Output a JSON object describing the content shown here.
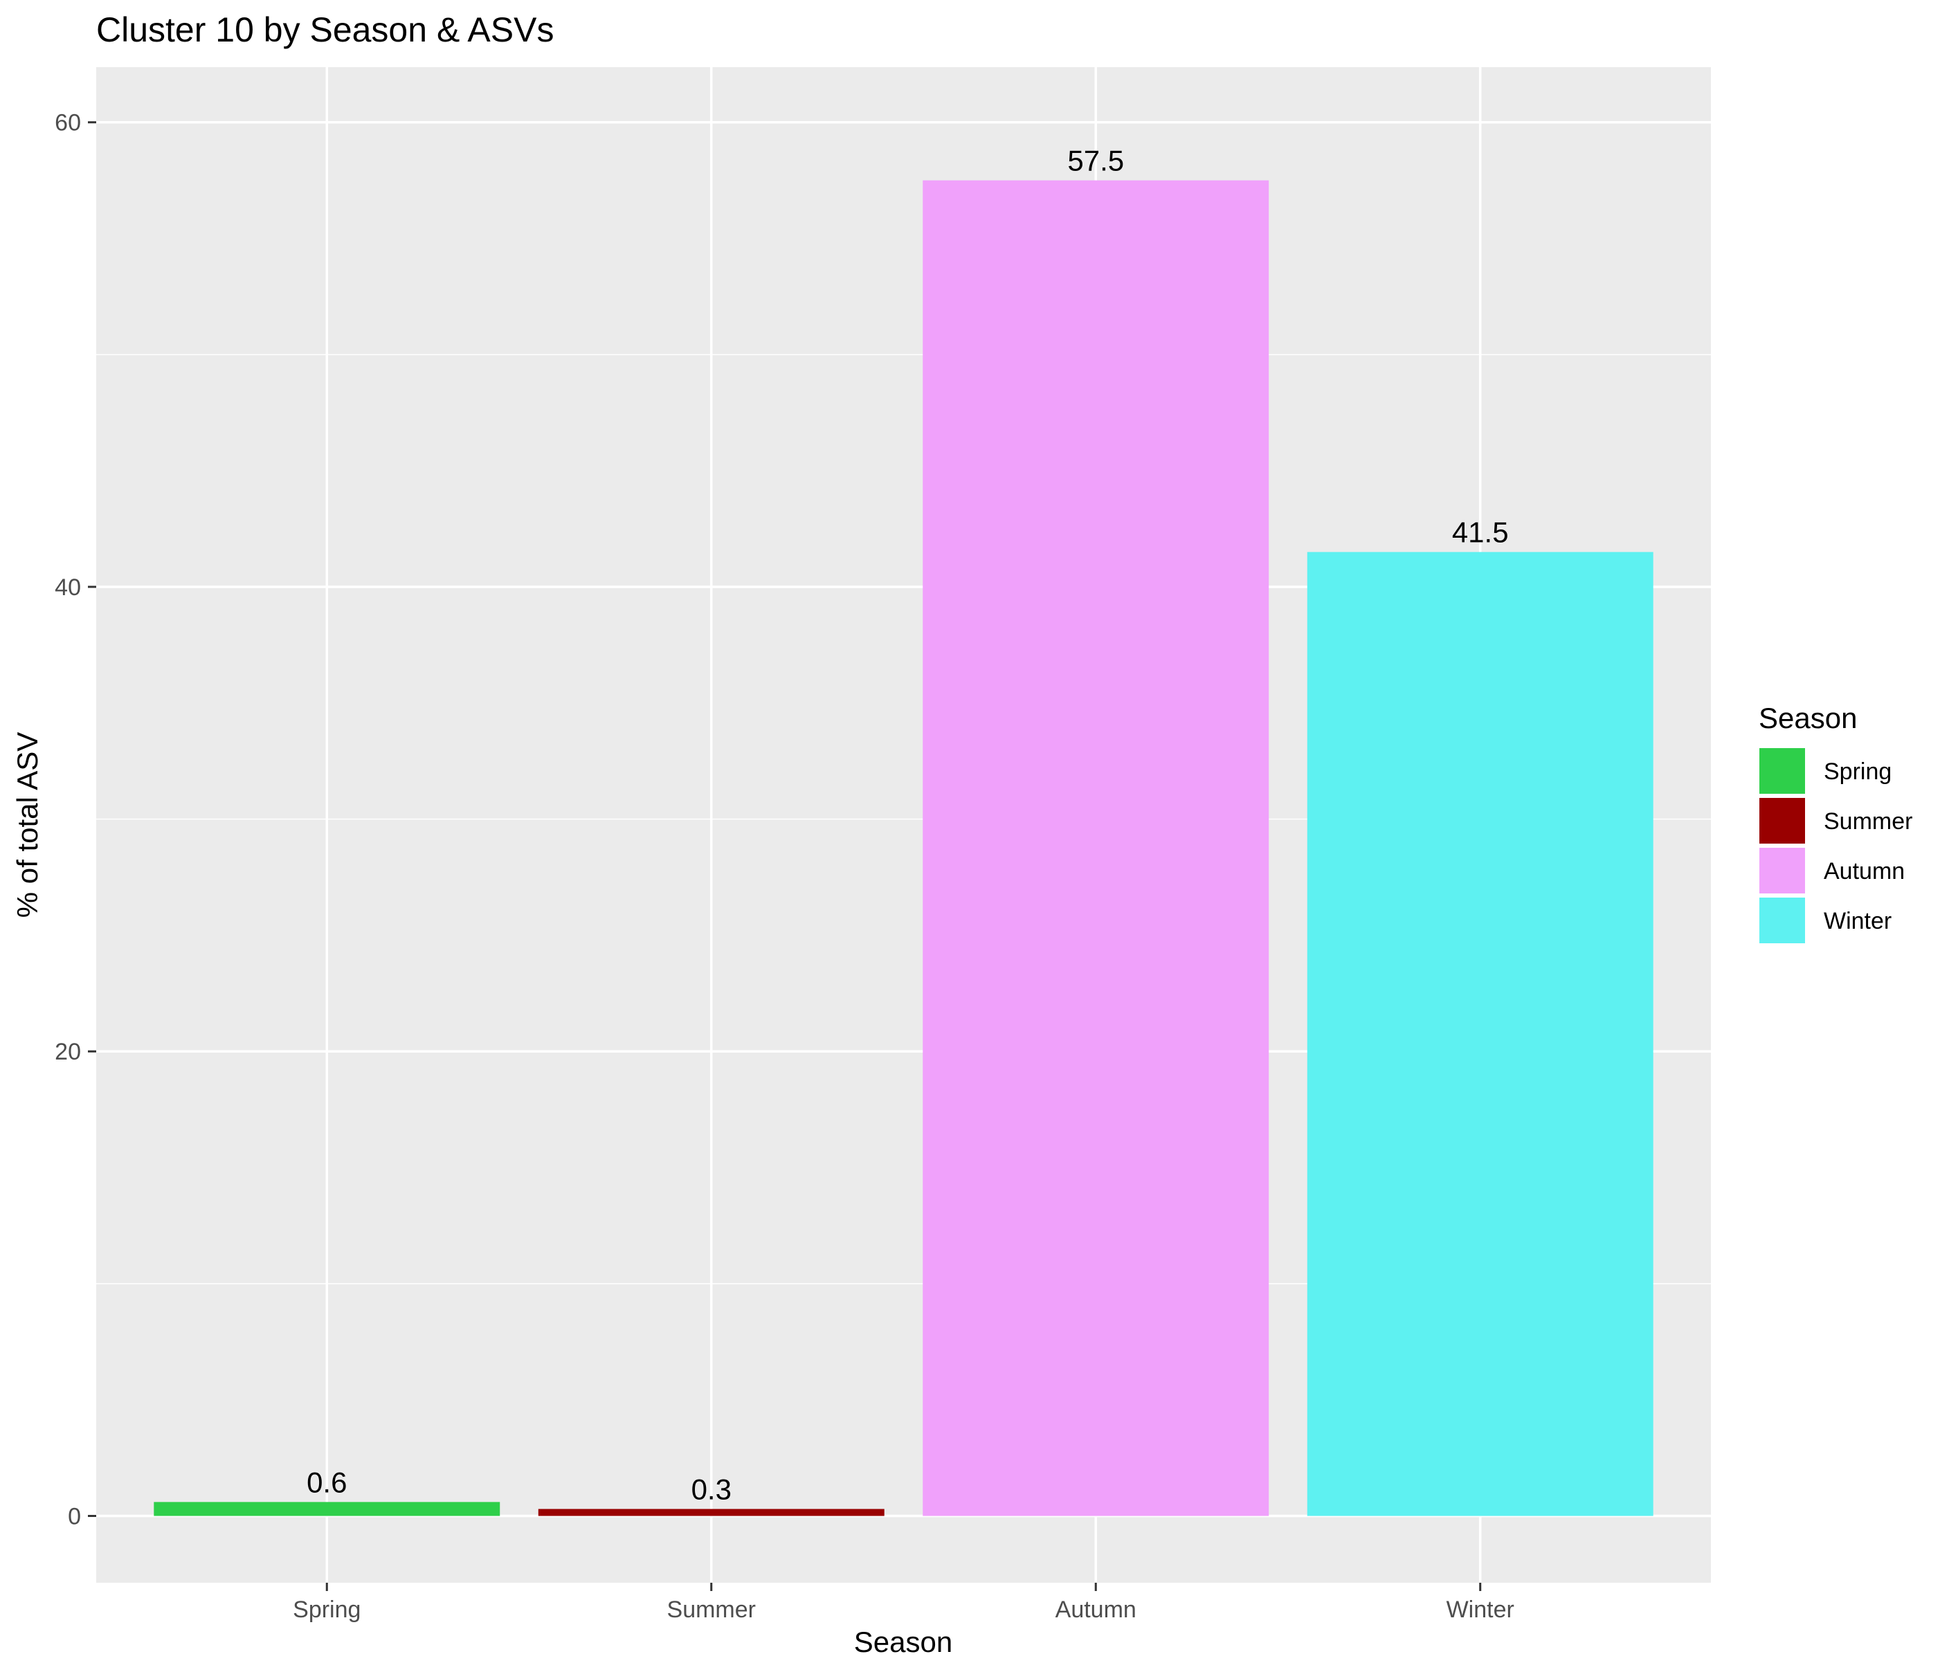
{
  "chart_data": {
    "type": "bar",
    "title": "Cluster 10 by Season & ASVs",
    "xlabel": "Season",
    "ylabel": "% of total ASV",
    "categories": [
      "Spring",
      "Summer",
      "Autumn",
      "Winter"
    ],
    "values": [
      0.6,
      0.3,
      57.5,
      41.5
    ],
    "data_labels": [
      "0.6",
      "0.3",
      "57.5",
      "41.5"
    ],
    "colors": [
      "#2ecf4a",
      "#990000",
      "#f0a1fb",
      "#5ef1f1"
    ],
    "ylim": [
      -2.875,
      62.375
    ],
    "yticks": [
      0,
      20,
      40,
      60
    ],
    "grid": true,
    "background": "#ebebeb",
    "legend": {
      "title": "Season",
      "placement": "right",
      "entries": [
        "Spring",
        "Summer",
        "Autumn",
        "Winter"
      ]
    }
  }
}
